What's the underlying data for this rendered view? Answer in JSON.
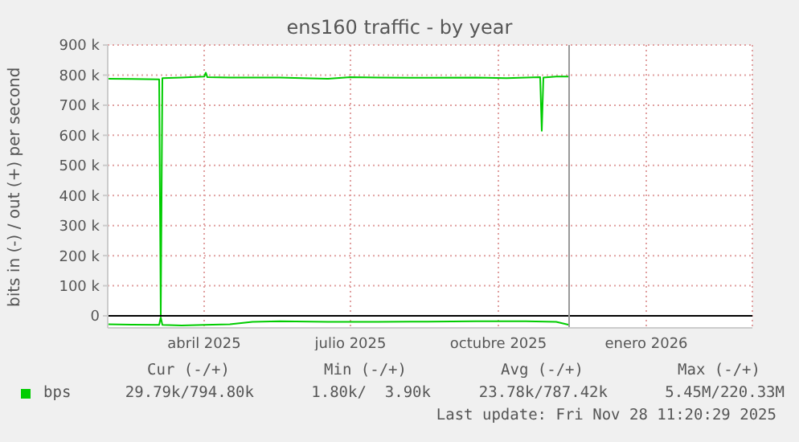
{
  "chart_data": {
    "type": "line",
    "title": "ens160 traffic - by year",
    "ylabel": "bits in (-) / out (+) per second",
    "xlim": [
      "2025-02-14",
      "2026-03-22"
    ],
    "xticks": [
      {
        "value": "2025-04-15",
        "label": "abril 2025"
      },
      {
        "value": "2025-07-15",
        "label": "julio 2025"
      },
      {
        "value": "2025-10-15",
        "label": "octubre 2025"
      },
      {
        "value": "2026-01-15",
        "label": "enero 2026"
      }
    ],
    "ylim": [
      -40000,
      900000
    ],
    "yticks": [
      0,
      {
        "value": 100000,
        "label": "100 k"
      },
      {
        "value": 200000,
        "label": "200 k"
      },
      {
        "value": 300000,
        "label": "300 k"
      },
      {
        "value": 400000,
        "label": "400 k"
      },
      {
        "value": 500000,
        "label": "500 k"
      },
      {
        "value": 600000,
        "label": "600 k"
      },
      {
        "value": 700000,
        "label": "700 k"
      },
      {
        "value": 800000,
        "label": "800 k"
      },
      {
        "value": 900000,
        "label": "900 k"
      }
    ],
    "grid": true,
    "legend": "bottom left",
    "marker": "none",
    "series": [
      {
        "name": "bps",
        "color": "#00cc00",
        "x": [
          "2025-02-14",
          "2025-03-01",
          "2025-03-18",
          "2025-03-19",
          "2025-03-20",
          "2025-04-01",
          "2025-04-15",
          "2025-04-16",
          "2025-04-17",
          "2025-05-01",
          "2025-06-01",
          "2025-06-15",
          "2025-07-01",
          "2025-07-15",
          "2025-08-01",
          "2025-09-01",
          "2025-10-01",
          "2025-10-20",
          "2025-11-10",
          "2025-11-11",
          "2025-11-12",
          "2025-11-20",
          "2025-11-28"
        ],
        "values": [
          788000,
          787000,
          786000,
          0,
          790000,
          792000,
          795000,
          808000,
          793000,
          792000,
          792000,
          790000,
          788000,
          793000,
          792000,
          791000,
          792000,
          790000,
          793000,
          615000,
          792000,
          795000,
          795000
        ]
      },
      {
        "color": "#00cc00",
        "x": [
          "2025-02-14",
          "2025-03-01",
          "2025-03-18",
          "2025-03-19",
          "2025-03-20",
          "2025-04-01",
          "2025-04-15",
          "2025-05-01",
          "2025-05-15",
          "2025-06-01",
          "2025-07-01",
          "2025-08-01",
          "2025-09-01",
          "2025-10-01",
          "2025-11-01",
          "2025-11-20",
          "2025-11-28"
        ],
        "values": [
          -28000,
          -29000,
          -30000,
          -5000,
          -30000,
          -32000,
          -30000,
          -28000,
          -20000,
          -18000,
          -20000,
          -20000,
          -19000,
          -18000,
          -18000,
          -20000,
          -30000
        ]
      }
    ],
    "ref_lines": [
      {
        "axis": "y",
        "value": 0,
        "color": "#000000"
      },
      {
        "axis": "x",
        "value": "2025-11-28",
        "color": "#999999"
      }
    ],
    "annotations": [
      "Cur (-/+)",
      "Min (-/+)",
      "Avg (-/+)",
      "Max (-/+)",
      "29.79k/794.80k",
      "1.80k/  3.90k",
      "23.78k/787.42k",
      "5.45M/220.33M",
      "Last update: Fri Nov 28 11:20:29 2025"
    ]
  }
}
